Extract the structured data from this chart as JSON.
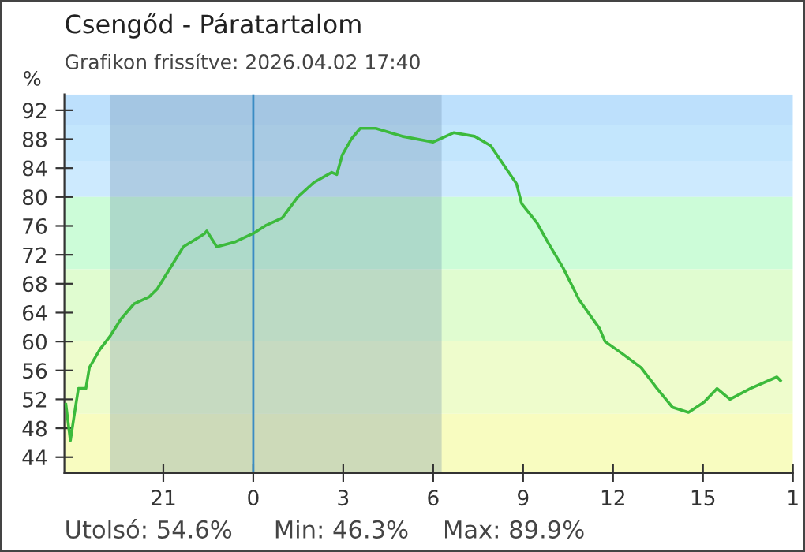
{
  "chart_data": {
    "type": "line",
    "title": "Csengőd - Páratartalom",
    "subtitle": "Grafikon frissítve: 2026.04.02 17:40",
    "ylabel": "%",
    "annotations": [
      "Utolsó: 54.6%",
      "Min: 46.3%",
      "Max: 89.9%"
    ],
    "series": [
      {
        "color": "#3cba3c",
        "x": [
          "2026-04-01T17:45",
          "2026-04-01T17:54",
          "2026-04-01T18:01",
          "2026-04-01T18:10",
          "2026-04-01T18:25",
          "2026-04-01T18:32",
          "2026-04-01T18:53",
          "2026-04-01T19:14",
          "2026-04-01T19:35",
          "2026-04-01T20:01",
          "2026-04-01T20:32",
          "2026-04-01T20:48",
          "2026-04-01T21:40",
          "2026-04-01T22:22",
          "2026-04-01T22:27",
          "2026-04-01T22:47",
          "2026-04-01T23:24",
          "2026-04-02T00:01",
          "2026-04-02T00:26",
          "2026-04-02T00:58",
          "2026-04-02T01:29",
          "2026-04-02T02:01",
          "2026-04-02T02:37",
          "2026-04-02T02:47",
          "2026-04-02T02:58",
          "2026-04-02T03:16",
          "2026-04-02T03:34",
          "2026-04-02T04:05",
          "2026-04-02T04:58",
          "2026-04-02T06:00",
          "2026-04-02T06:41",
          "2026-04-02T07:23",
          "2026-04-02T07:55",
          "2026-04-02T08:47",
          "2026-04-02T08:57",
          "2026-04-02T09:28",
          "2026-04-02T09:49",
          "2026-04-02T10:20",
          "2026-04-02T10:52",
          "2026-04-02T11:33",
          "2026-04-02T11:44",
          "2026-04-02T12:15",
          "2026-04-02T12:56",
          "2026-04-02T13:28",
          "2026-04-02T13:59",
          "2026-04-02T14:31",
          "2026-04-02T15:02",
          "2026-04-02T15:28",
          "2026-04-02T15:54",
          "2026-04-02T16:35",
          "2026-04-02T17:28",
          "2026-04-02T17:35"
        ],
        "values": [
          51.3,
          46.3,
          49.5,
          53.5,
          53.5,
          56.4,
          58.9,
          60.8,
          63.1,
          65.2,
          66.2,
          67.3,
          73.1,
          74.9,
          75.3,
          73.1,
          73.8,
          75.0,
          76.1,
          77.1,
          80.0,
          82.0,
          83.4,
          83.1,
          85.8,
          88.0,
          89.5,
          89.5,
          88.4,
          87.6,
          88.9,
          88.4,
          87.1,
          81.8,
          79.1,
          76.4,
          73.8,
          70.2,
          65.8,
          61.8,
          60.0,
          58.5,
          56.4,
          53.5,
          50.9,
          50.2,
          51.6,
          53.5,
          52.0,
          53.5,
          55.1,
          54.6
        ]
      }
    ],
    "xlim": [
      "2026-04-01T17:42",
      "2026-04-02T18:00"
    ],
    "xticks": [
      {
        "value": "2026-04-01T21:00",
        "label": "21"
      },
      {
        "value": "2026-04-02T00:00",
        "label": "0"
      },
      {
        "value": "2026-04-02T03:00",
        "label": "3"
      },
      {
        "value": "2026-04-02T06:00",
        "label": "6"
      },
      {
        "value": "2026-04-02T09:00",
        "label": "9"
      },
      {
        "value": "2026-04-02T12:00",
        "label": "12"
      },
      {
        "value": "2026-04-02T15:00",
        "label": "15"
      },
      {
        "value": "2026-04-02T18:00",
        "label": "1"
      }
    ],
    "ylim": [
      41.8,
      94.2
    ],
    "yticks": [
      44,
      48,
      52,
      56,
      60,
      64,
      68,
      72,
      76,
      80,
      84,
      88,
      92
    ],
    "bands": [
      {
        "axis": "y",
        "from": 90,
        "to": 94.2,
        "color": "#bde0fc"
      },
      {
        "axis": "y",
        "from": 85,
        "to": 90,
        "color": "#c3e6fd"
      },
      {
        "axis": "y",
        "from": 80,
        "to": 85,
        "color": "#cdeafe"
      },
      {
        "axis": "y",
        "from": 70,
        "to": 80,
        "color": "#ccfcd8"
      },
      {
        "axis": "y",
        "from": 60,
        "to": 70,
        "color": "#e0fcd0"
      },
      {
        "axis": "y",
        "from": 50,
        "to": 60,
        "color": "#eefccc"
      },
      {
        "axis": "y",
        "from": 41.8,
        "to": 50,
        "color": "#f8fcc0"
      },
      {
        "axis": "x",
        "from": "2026-04-01T19:14",
        "to": "2026-04-02T06:17",
        "color": "#6a8aa8"
      }
    ],
    "ref_lines": [
      {
        "axis": "x",
        "value": "2026-04-02T00:00",
        "color": "#3a8cc4"
      }
    ],
    "grid": false,
    "legend": false,
    "marker": "none",
    "line_style": "solid"
  }
}
